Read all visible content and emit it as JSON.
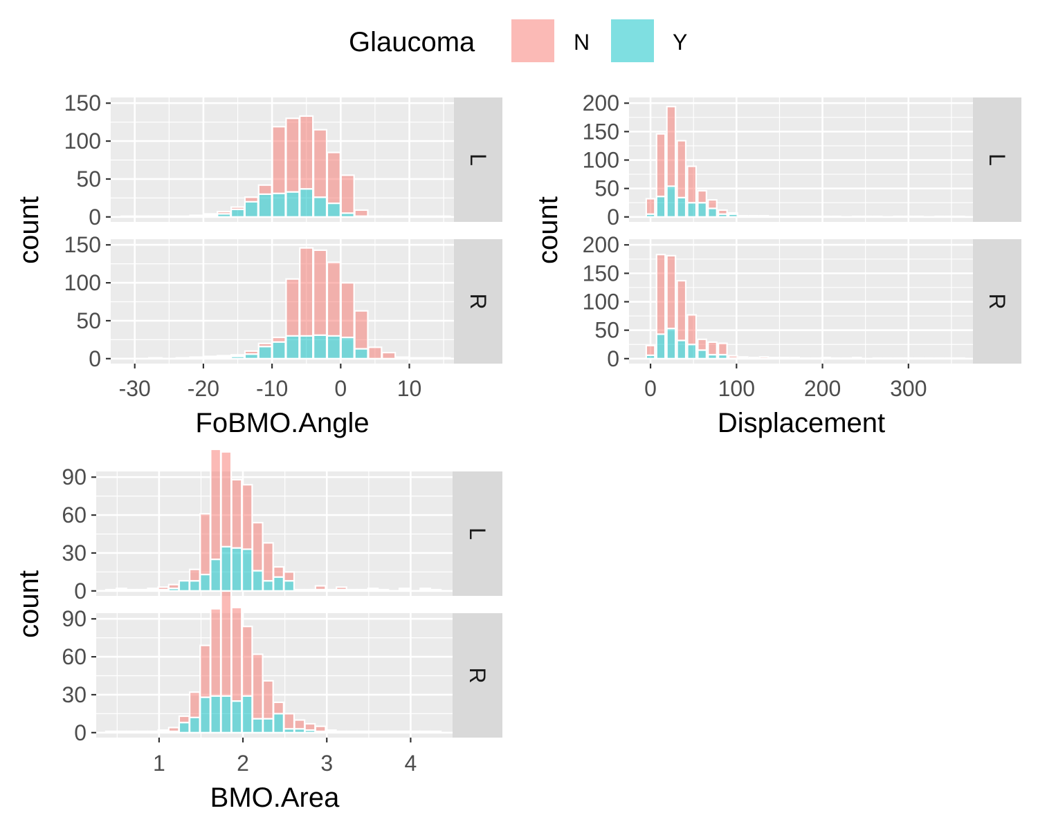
{
  "legend": {
    "title": "Glaucoma",
    "items": [
      {
        "label": "N",
        "color": "#F8766D"
      },
      {
        "label": "Y",
        "color": "#00BFC4"
      }
    ]
  },
  "chart_data": [
    {
      "type": "bar",
      "subtype": "stacked-histogram",
      "xlabel": "FoBMO.Angle",
      "ylabel": "count",
      "xlim": [
        -33.5,
        16.5
      ],
      "xticks": [
        -30,
        -20,
        -10,
        0,
        10
      ],
      "xtick_labels": [
        "-30",
        "-20",
        "-10",
        "0",
        "10"
      ],
      "bin_width": 1.9,
      "facets": [
        {
          "label": "L",
          "ylim": [
            0,
            150
          ],
          "yticks": [
            0,
            50,
            100,
            150
          ],
          "ytick_labels": [
            "0",
            "50",
            "100",
            "150"
          ],
          "x": [
            -31,
            -29,
            -27,
            -25,
            -23,
            -21,
            -19,
            -17,
            -15,
            -13,
            -11,
            -9,
            -7,
            -5,
            -3,
            -1,
            1,
            3,
            5,
            7,
            9,
            11,
            13,
            15
          ],
          "series": [
            {
              "name": "N",
              "values": [
                1,
                0,
                1,
                0,
                1,
                1,
                2,
                3,
                3,
                6,
                12,
                88,
                97,
                96,
                89,
                67,
                50,
                8,
                1,
                1,
                1,
                0,
                0,
                1
              ]
            },
            {
              "name": "Y",
              "values": [
                0,
                1,
                0,
                1,
                0,
                1,
                2,
                4,
                10,
                20,
                30,
                31,
                33,
                37,
                26,
                18,
                5,
                1,
                0,
                0,
                0,
                1,
                1,
                0
              ]
            }
          ]
        },
        {
          "label": "R",
          "ylim": [
            0,
            150
          ],
          "yticks": [
            0,
            50,
            100,
            150
          ],
          "ytick_labels": [
            "0",
            "50",
            "100",
            "150"
          ],
          "x": [
            -31,
            -29,
            -27,
            -25,
            -23,
            -21,
            -19,
            -17,
            -15,
            -13,
            -11,
            -9,
            -7,
            -5,
            -3,
            -1,
            1,
            3,
            5,
            7,
            9,
            11,
            13,
            15
          ],
          "series": [
            {
              "name": "N",
              "values": [
                0,
                0,
                1,
                0,
                1,
                1,
                2,
                2,
                2,
                4,
                4,
                6,
                75,
                116,
                112,
                97,
                72,
                50,
                15,
                8,
                2,
                1,
                1,
                1
              ]
            },
            {
              "name": "Y",
              "values": [
                0,
                0,
                0,
                0,
                0,
                1,
                1,
                2,
                3,
                6,
                16,
                22,
                30,
                30,
                31,
                30,
                28,
                13,
                0,
                0,
                0,
                0,
                0,
                0
              ]
            }
          ]
        }
      ]
    },
    {
      "type": "bar",
      "subtype": "stacked-histogram",
      "xlabel": "Displacement",
      "ylabel": "count",
      "xlim": [
        -25,
        375
      ],
      "xticks": [
        0,
        100,
        200,
        300
      ],
      "xtick_labels": [
        "0",
        "100",
        "200",
        "300"
      ],
      "bin_width": 10,
      "facets": [
        {
          "label": "L",
          "ylim": [
            0,
            200
          ],
          "yticks": [
            0,
            50,
            100,
            150,
            200
          ],
          "ytick_labels": [
            "0",
            "50",
            "100",
            "150",
            "200"
          ],
          "x": [
            0,
            12,
            24,
            36,
            48,
            60,
            72,
            84,
            96,
            108,
            120,
            132,
            144,
            156,
            168,
            180,
            192,
            204,
            216,
            228,
            240,
            252,
            264,
            276,
            288,
            300,
            312,
            324,
            336,
            348,
            360
          ],
          "series": [
            {
              "name": "N",
              "values": [
                27,
                110,
                140,
                100,
                64,
                21,
                15,
                7,
                2,
                1,
                1,
                1,
                1,
                1,
                0,
                1,
                0,
                1,
                0,
                0,
                1,
                0,
                1,
                0,
                0,
                1,
                0,
                0,
                1,
                0,
                1
              ]
            },
            {
              "name": "Y",
              "values": [
                5,
                36,
                54,
                34,
                25,
                25,
                15,
                5,
                5,
                1,
                1,
                1,
                0,
                0,
                1,
                0,
                1,
                0,
                1,
                0,
                0,
                1,
                0,
                0,
                1,
                0,
                1,
                0,
                0,
                1,
                0
              ]
            }
          ]
        },
        {
          "label": "R",
          "ylim": [
            0,
            200
          ],
          "yticks": [
            0,
            50,
            100,
            150,
            200
          ],
          "ytick_labels": [
            "0",
            "50",
            "100",
            "150",
            "200"
          ],
          "x": [
            0,
            12,
            24,
            36,
            48,
            60,
            72,
            84,
            96,
            108,
            120,
            132,
            144,
            156,
            168,
            180,
            192,
            204,
            216,
            228,
            240,
            252,
            264,
            276,
            288,
            300,
            312,
            324,
            336,
            348,
            360
          ],
          "series": [
            {
              "name": "N",
              "values": [
                17,
                140,
                128,
                105,
                52,
                19,
                22,
                20,
                4,
                2,
                2,
                3,
                1,
                2,
                1,
                1,
                1,
                1,
                0,
                1,
                1,
                0,
                0,
                1,
                1,
                0,
                1,
                1,
                0,
                1,
                1
              ]
            },
            {
              "name": "Y",
              "values": [
                6,
                43,
                53,
                32,
                25,
                15,
                7,
                7,
                1,
                1,
                0,
                0,
                1,
                0,
                1,
                0,
                0,
                1,
                1,
                0,
                1,
                0,
                1,
                0,
                0,
                1,
                0,
                0,
                1,
                0,
                0
              ]
            }
          ]
        }
      ]
    },
    {
      "type": "bar",
      "subtype": "stacked-histogram",
      "xlabel": "BMO.Area",
      "ylabel": "count",
      "xlim": [
        0.25,
        4.5
      ],
      "xticks": [
        1,
        2,
        3,
        4
      ],
      "xtick_labels": [
        "1",
        "2",
        "3",
        "4"
      ],
      "bin_width": 0.12,
      "facets": [
        {
          "label": "L",
          "ylim": [
            0,
            120
          ],
          "yticks": [
            0,
            30,
            60,
            90
          ],
          "ytick_labels": [
            "0",
            "30",
            "60",
            "90"
          ],
          "x": [
            0.3,
            0.425,
            0.55,
            0.675,
            0.8,
            0.925,
            1.05,
            1.175,
            1.3,
            1.425,
            1.55,
            1.675,
            1.8,
            1.925,
            2.05,
            2.175,
            2.3,
            2.425,
            2.55,
            2.675,
            2.8,
            2.925,
            3.05,
            3.175,
            3.3,
            3.425,
            3.55,
            3.675,
            3.8,
            3.925,
            4.05,
            4.175,
            4.3,
            4.425
          ],
          "series": [
            {
              "name": "N",
              "values": [
                0,
                1,
                1,
                0,
                1,
                1,
                2,
                3,
                0,
                9,
                48,
                87,
                75,
                54,
                51,
                38,
                30,
                8,
                7,
                1,
                1,
                3,
                1,
                2,
                1,
                0,
                1,
                1,
                0,
                1,
                0,
                1,
                1,
                0
              ]
            },
            {
              "name": "Y",
              "values": [
                0,
                0,
                1,
                1,
                0,
                1,
                1,
                2,
                8,
                8,
                13,
                25,
                35,
                34,
                33,
                16,
                8,
                11,
                8,
                0,
                0,
                1,
                0,
                1,
                0,
                1,
                1,
                0,
                0,
                1,
                0,
                1,
                0,
                0
              ]
            }
          ]
        },
        {
          "label": "R",
          "ylim": [
            0,
            120
          ],
          "yticks": [
            0,
            30,
            60,
            90
          ],
          "ytick_labels": [
            "0",
            "30",
            "60",
            "90"
          ],
          "x": [
            0.3,
            0.425,
            0.55,
            0.675,
            0.8,
            0.925,
            1.05,
            1.175,
            1.3,
            1.425,
            1.55,
            1.675,
            1.8,
            1.925,
            2.05,
            2.175,
            2.3,
            2.425,
            2.55,
            2.675,
            2.8,
            2.925,
            3.05,
            3.175,
            3.3,
            3.425,
            3.55,
            3.675,
            3.8,
            3.925,
            4.05,
            4.175,
            4.3,
            4.425
          ],
          "series": [
            {
              "name": "N",
              "values": [
                0,
                1,
                1,
                0,
                1,
                1,
                1,
                3,
                5,
                20,
                41,
                69,
                83,
                74,
                55,
                51,
                30,
                9,
                12,
                7,
                5,
                4,
                1,
                0,
                1,
                1,
                0,
                1,
                1,
                0,
                1,
                1,
                0,
                0
              ]
            },
            {
              "name": "Y",
              "values": [
                0,
                0,
                0,
                1,
                0,
                0,
                1,
                1,
                8,
                12,
                28,
                29,
                29,
                25,
                29,
                11,
                11,
                15,
                3,
                3,
                2,
                1,
                1,
                1,
                0,
                0,
                1,
                0,
                0,
                1,
                0,
                0,
                1,
                0
              ]
            }
          ]
        }
      ]
    }
  ]
}
